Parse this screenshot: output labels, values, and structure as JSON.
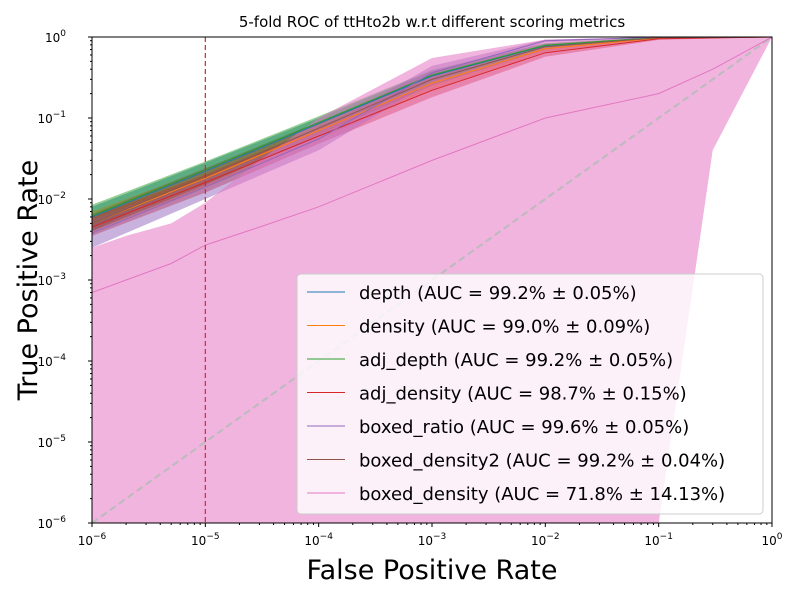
{
  "chart_data": {
    "type": "line",
    "title": "5-fold ROC of ttHto2b w.r.t different scoring metrics",
    "xlabel": "False Positive Rate",
    "ylabel": "True Positive Rate",
    "xscale": "log",
    "yscale": "log",
    "xlim": [
      1e-06,
      1
    ],
    "ylim": [
      1e-06,
      1
    ],
    "x_ticks": [
      {
        "value": 1e-06,
        "base": "10",
        "exp": "−6"
      },
      {
        "value": 1e-05,
        "base": "10",
        "exp": "−5"
      },
      {
        "value": 0.0001,
        "base": "10",
        "exp": "−4"
      },
      {
        "value": 0.001,
        "base": "10",
        "exp": "−3"
      },
      {
        "value": 0.01,
        "base": "10",
        "exp": "−2"
      },
      {
        "value": 0.1,
        "base": "10",
        "exp": "−1"
      },
      {
        "value": 1,
        "base": "10",
        "exp": "0"
      }
    ],
    "y_ticks": [
      {
        "value": 1e-06,
        "base": "10",
        "exp": "−6"
      },
      {
        "value": 1e-05,
        "base": "10",
        "exp": "−5"
      },
      {
        "value": 0.0001,
        "base": "10",
        "exp": "−4"
      },
      {
        "value": 0.001,
        "base": "10",
        "exp": "−3"
      },
      {
        "value": 0.01,
        "base": "10",
        "exp": "−2"
      },
      {
        "value": 0.1,
        "base": "10",
        "exp": "−1"
      },
      {
        "value": 1,
        "base": "10",
        "exp": "0"
      }
    ],
    "grid": false,
    "legend_position": "lower-right",
    "vertical_reference": {
      "x": 1e-05,
      "color": "#d62728",
      "style": "dashed"
    },
    "diagonal_reference": {
      "color": "#bbbbbb",
      "style": "dashed"
    },
    "series": [
      {
        "name": "depth (AUC = 99.2% ± 0.05%)",
        "color": "#1f77b4",
        "opacity": 0.5,
        "x": [
          1e-06,
          1e-05,
          0.0001,
          0.001,
          0.01,
          0.1,
          1
        ],
        "y": [
          0.006,
          0.022,
          0.085,
          0.33,
          0.78,
          0.985,
          1
        ],
        "band_lower": [
          0.004,
          0.018,
          0.07,
          0.27,
          0.72,
          0.97,
          1
        ],
        "band_upper": [
          0.008,
          0.028,
          0.1,
          0.38,
          0.83,
          0.995,
          1
        ]
      },
      {
        "name": "density (AUC = 99.0% ± 0.09%)",
        "color": "#ff7f0e",
        "opacity": 0.5,
        "x": [
          1e-06,
          1e-05,
          0.0001,
          0.001,
          0.01,
          0.1,
          1
        ],
        "y": [
          0.005,
          0.018,
          0.07,
          0.27,
          0.72,
          0.97,
          1
        ],
        "band_lower": [
          0.004,
          0.014,
          0.055,
          0.22,
          0.66,
          0.95,
          1
        ],
        "band_upper": [
          0.007,
          0.023,
          0.085,
          0.32,
          0.78,
          0.985,
          1
        ]
      },
      {
        "name": "adj_depth (AUC = 99.2% ± 0.05%)",
        "color": "#2ca02c",
        "opacity": 0.5,
        "x": [
          1e-06,
          1e-05,
          0.0001,
          0.001,
          0.01,
          0.1,
          1
        ],
        "y": [
          0.0062,
          0.023,
          0.088,
          0.34,
          0.79,
          0.986,
          1
        ],
        "band_lower": [
          0.0045,
          0.019,
          0.072,
          0.28,
          0.73,
          0.97,
          1
        ],
        "band_upper": [
          0.0085,
          0.029,
          0.105,
          0.39,
          0.84,
          0.995,
          1
        ]
      },
      {
        "name": "adj_density (AUC = 98.7% ± 0.15%)",
        "color": "#d62728",
        "opacity": 0.5,
        "x": [
          1e-06,
          1e-05,
          0.0001,
          0.001,
          0.01,
          0.1,
          1
        ],
        "y": [
          0.0045,
          0.016,
          0.06,
          0.22,
          0.64,
          0.95,
          1
        ],
        "band_lower": [
          0.0035,
          0.012,
          0.048,
          0.18,
          0.57,
          0.92,
          1
        ],
        "band_upper": [
          0.006,
          0.02,
          0.075,
          0.27,
          0.71,
          0.975,
          1
        ]
      },
      {
        "name": "boxed_ratio (AUC = 99.6% ± 0.05%)",
        "color": "#9467bd",
        "opacity": 0.5,
        "x": [
          1e-06,
          1e-05,
          0.0001,
          0.001,
          0.01,
          0.1,
          1
        ],
        "y": [
          0.0038,
          0.014,
          0.055,
          0.36,
          0.9,
          0.995,
          1
        ],
        "band_lower": [
          0.0025,
          0.01,
          0.04,
          0.28,
          0.86,
          0.99,
          1
        ],
        "band_upper": [
          0.0055,
          0.018,
          0.07,
          0.44,
          0.93,
          0.998,
          1
        ]
      },
      {
        "name": "boxed_density2 (AUC = 99.2% ± 0.04%)",
        "color": "#8c564b",
        "opacity": 0.5,
        "x": [
          1e-06,
          1e-05,
          0.0001,
          0.001,
          0.01,
          0.1,
          1
        ],
        "y": [
          0.005,
          0.019,
          0.075,
          0.3,
          0.76,
          0.98,
          1
        ],
        "band_lower": [
          0.004,
          0.015,
          0.062,
          0.25,
          0.7,
          0.965,
          1
        ],
        "band_upper": [
          0.0065,
          0.024,
          0.09,
          0.35,
          0.81,
          0.99,
          1
        ]
      },
      {
        "name": "boxed_density (AUC = 71.8% ± 14.13%)",
        "color": "#e377c2",
        "opacity": 0.55,
        "x": [
          1e-06,
          2e-06,
          5e-06,
          1e-05,
          3e-05,
          0.0001,
          0.001,
          0.01,
          0.1,
          0.3,
          1
        ],
        "y": [
          0.0007,
          0.001,
          0.0016,
          0.0027,
          0.0045,
          0.008,
          0.03,
          0.1,
          0.2,
          0.4,
          1
        ],
        "band_lower": [
          1e-06,
          1e-06,
          1e-06,
          1e-06,
          1e-06,
          1e-06,
          1e-06,
          1e-06,
          1e-06,
          0.04,
          1
        ],
        "band_upper": [
          0.0025,
          0.0035,
          0.005,
          0.009,
          0.03,
          0.1,
          0.55,
          0.93,
          0.995,
          1,
          1
        ]
      }
    ]
  }
}
